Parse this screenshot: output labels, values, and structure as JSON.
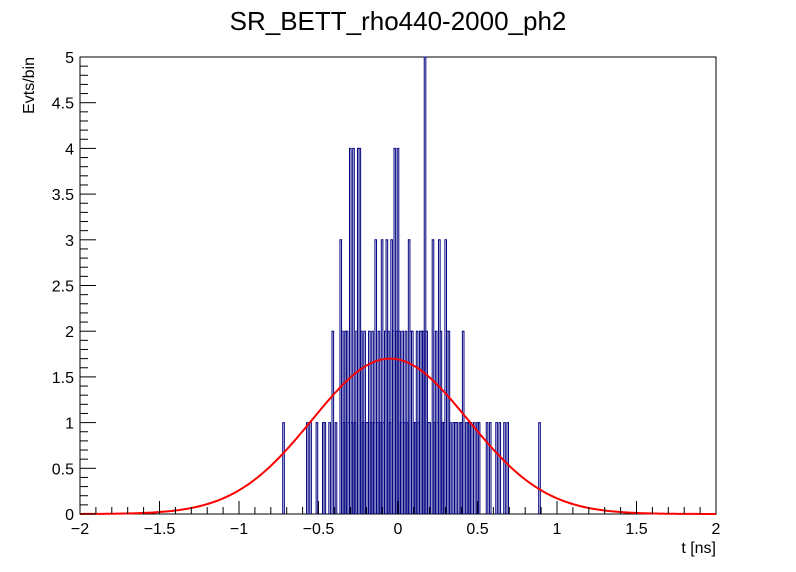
{
  "chart_data": {
    "type": "histogram",
    "title": "SR_BETT_rho440-2000_ph2",
    "xlabel": "t [ns]",
    "ylabel": "Evts/bin",
    "xlim": [
      -2,
      2
    ],
    "ylim": [
      0,
      5
    ],
    "x_ticks": [
      -2,
      -1.5,
      -1,
      -0.5,
      0,
      0.5,
      1,
      1.5,
      2
    ],
    "x_tick_labels": [
      "−2",
      "−1.5",
      "−1",
      "−0.5",
      "0",
      "0.5",
      "1",
      "1.5",
      "2"
    ],
    "y_ticks": [
      0,
      0.5,
      1,
      1.5,
      2,
      2.5,
      3,
      3.5,
      4,
      4.5,
      5
    ],
    "y_tick_labels": [
      "0",
      "0.5",
      "1",
      "1.5",
      "2",
      "2.5",
      "3",
      "3.5",
      "4",
      "4.5",
      "5"
    ],
    "bin_width": 0.01,
    "bins": [
      [
        -0.72,
        1
      ],
      [
        -0.57,
        1
      ],
      [
        -0.55,
        1
      ],
      [
        -0.51,
        1
      ],
      [
        -0.47,
        1
      ],
      [
        -0.46,
        1
      ],
      [
        -0.43,
        1
      ],
      [
        -0.41,
        2
      ],
      [
        -0.39,
        1
      ],
      [
        -0.36,
        3
      ],
      [
        -0.35,
        2
      ],
      [
        -0.34,
        1
      ],
      [
        -0.33,
        2
      ],
      [
        -0.32,
        2
      ],
      [
        -0.31,
        1
      ],
      [
        -0.3,
        4
      ],
      [
        -0.29,
        1
      ],
      [
        -0.28,
        4
      ],
      [
        -0.27,
        1
      ],
      [
        -0.26,
        2
      ],
      [
        -0.25,
        4
      ],
      [
        -0.24,
        4
      ],
      [
        -0.23,
        2
      ],
      [
        -0.22,
        1
      ],
      [
        -0.21,
        2
      ],
      [
        -0.2,
        1
      ],
      [
        -0.19,
        1
      ],
      [
        -0.18,
        2
      ],
      [
        -0.17,
        1
      ],
      [
        -0.16,
        2
      ],
      [
        -0.15,
        1
      ],
      [
        -0.14,
        3
      ],
      [
        -0.13,
        1
      ],
      [
        -0.12,
        2
      ],
      [
        -0.11,
        1
      ],
      [
        -0.1,
        3
      ],
      [
        -0.09,
        1
      ],
      [
        -0.08,
        2
      ],
      [
        -0.07,
        3
      ],
      [
        -0.06,
        2
      ],
      [
        -0.05,
        1
      ],
      [
        -0.04,
        3
      ],
      [
        -0.03,
        2
      ],
      [
        -0.02,
        4
      ],
      [
        -0.01,
        2
      ],
      [
        0.0,
        4
      ],
      [
        0.01,
        2
      ],
      [
        0.02,
        1
      ],
      [
        0.03,
        2
      ],
      [
        0.04,
        1
      ],
      [
        0.05,
        2
      ],
      [
        0.06,
        1
      ],
      [
        0.07,
        3
      ],
      [
        0.08,
        2
      ],
      [
        0.09,
        2
      ],
      [
        0.1,
        1
      ],
      [
        0.11,
        1
      ],
      [
        0.12,
        2
      ],
      [
        0.13,
        1
      ],
      [
        0.14,
        2
      ],
      [
        0.15,
        2
      ],
      [
        0.16,
        2
      ],
      [
        0.17,
        5
      ],
      [
        0.18,
        2
      ],
      [
        0.19,
        1
      ],
      [
        0.2,
        1
      ],
      [
        0.22,
        3
      ],
      [
        0.23,
        1
      ],
      [
        0.24,
        2
      ],
      [
        0.25,
        1
      ],
      [
        0.26,
        3
      ],
      [
        0.27,
        2
      ],
      [
        0.28,
        1
      ],
      [
        0.29,
        1
      ],
      [
        0.3,
        3
      ],
      [
        0.31,
        2
      ],
      [
        0.32,
        2
      ],
      [
        0.33,
        1
      ],
      [
        0.35,
        1
      ],
      [
        0.36,
        1
      ],
      [
        0.37,
        1
      ],
      [
        0.39,
        1
      ],
      [
        0.4,
        1
      ],
      [
        0.41,
        2
      ],
      [
        0.43,
        1
      ],
      [
        0.44,
        1
      ],
      [
        0.45,
        1
      ],
      [
        0.46,
        1
      ],
      [
        0.48,
        1
      ],
      [
        0.5,
        1
      ],
      [
        0.51,
        1
      ],
      [
        0.56,
        1
      ],
      [
        0.58,
        1
      ],
      [
        0.62,
        1
      ],
      [
        0.64,
        1
      ],
      [
        0.67,
        1
      ],
      [
        0.69,
        1
      ],
      [
        0.89,
        1
      ]
    ],
    "fit": {
      "function": "gaus",
      "amplitude": 1.7,
      "mean": -0.05,
      "sigma": 0.49,
      "color": "#ff0000"
    },
    "histogram_color": "#000080",
    "grid": false,
    "legend": "none"
  }
}
